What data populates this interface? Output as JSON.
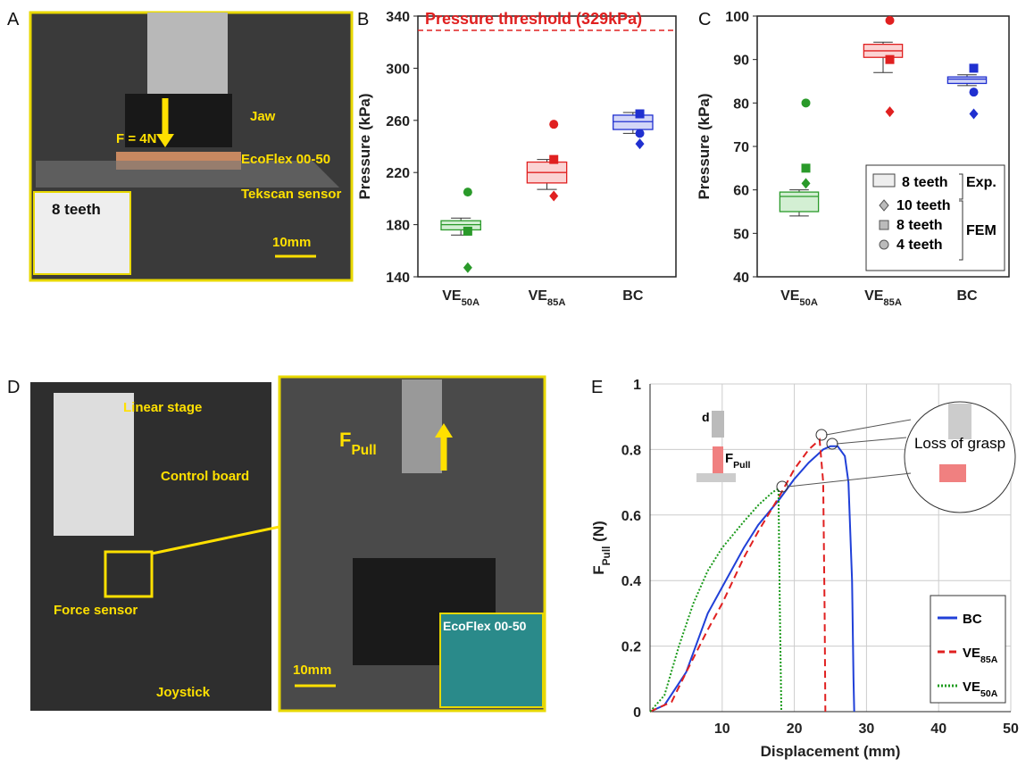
{
  "panels": [
    "A",
    "B",
    "C",
    "D",
    "E"
  ],
  "photo_a": {
    "force": "F = 4N",
    "jaw": "Jaw",
    "ecoflex": "EcoFlex 00-50",
    "sensor": "Tekscan sensor",
    "teeth": "8 teeth",
    "scale": "10mm"
  },
  "photo_d": {
    "stage": "Linear stage",
    "board": "Control board",
    "force_sensor": "Force sensor",
    "joystick": "Joystick",
    "pull": {
      "main": "F",
      "sub": "Pull"
    },
    "ecoflex": "EcoFlex 00-50",
    "scale": "10mm"
  },
  "chart_data": [
    {
      "type": "box",
      "ylabel": "Pressure (kPa)",
      "categories": [
        {
          "main": "VE",
          "sub": "50A"
        },
        {
          "main": "VE",
          "sub": "85A"
        },
        {
          "main": "BC"
        }
      ],
      "colors": [
        "#2a9a2a",
        "#e02020",
        "#2030d0"
      ],
      "fills": [
        "#d3efd3",
        "#fbd3d3",
        "#d3d6f7"
      ],
      "ylim": [
        140,
        340
      ],
      "yticks": [
        140,
        180,
        220,
        260,
        300,
        340
      ],
      "boxes": [
        {
          "whisker_low": 172,
          "q1": 176,
          "median": 180,
          "q3": 183,
          "whisker_high": 185
        },
        {
          "whisker_low": 207,
          "q1": 212,
          "median": 220,
          "q3": 228,
          "whisker_high": 230
        },
        {
          "whisker_low": 250,
          "q1": 253,
          "median": 259,
          "q3": 264,
          "whisker_high": 266
        }
      ],
      "fem": {
        "circle": [
          205,
          257,
          250
        ],
        "square": [
          175,
          230,
          265
        ],
        "diamond": [
          147,
          202,
          242
        ]
      },
      "threshold": {
        "value": 329,
        "label": "Pressure threshold (329kPa)"
      }
    },
    {
      "type": "box",
      "ylabel": "Pressure (kPa)",
      "categories": [
        {
          "main": "VE",
          "sub": "50A"
        },
        {
          "main": "VE",
          "sub": "85A"
        },
        {
          "main": "BC"
        }
      ],
      "colors": [
        "#2a9a2a",
        "#e02020",
        "#2030d0"
      ],
      "fills": [
        "#d3efd3",
        "#fbd3d3",
        "#d3d6f7"
      ],
      "ylim": [
        40,
        100
      ],
      "yticks": [
        40,
        50,
        60,
        70,
        80,
        90,
        100
      ],
      "boxes": [
        {
          "whisker_low": 54,
          "q1": 55,
          "median": 58.5,
          "q3": 59.5,
          "whisker_high": 60
        },
        {
          "whisker_low": 87,
          "q1": 90.5,
          "median": 92,
          "q3": 93.5,
          "whisker_high": 94
        },
        {
          "whisker_low": 84,
          "q1": 84.5,
          "median": 85.5,
          "q3": 86,
          "whisker_high": 86.5
        }
      ],
      "fem": {
        "circle": [
          80,
          99,
          82.5
        ],
        "square": [
          65,
          90,
          88
        ],
        "diamond": [
          61.5,
          78,
          77.5
        ]
      },
      "legend": {
        "exp_item": "8 teeth",
        "exp": "Exp.",
        "diamond": "10 teeth",
        "square": "8 teeth",
        "circle": "4 teeth",
        "fem": "FEM"
      }
    },
    {
      "type": "line",
      "xlabel": "Displacement (mm)",
      "ylabel": {
        "main": "F",
        "sub": "Pull",
        "tail": " (N)"
      },
      "xlim": [
        0,
        50
      ],
      "xticks": [
        10,
        20,
        30,
        40,
        50
      ],
      "ylim": [
        0,
        1
      ],
      "yticks": [
        0,
        0.2,
        0.4,
        0.6,
        0.8,
        1
      ],
      "grid": true,
      "legend": "lower right",
      "annotation": "Loss of grasp",
      "inset": {
        "d": "d",
        "force": {
          "main": "F",
          "sub": "Pull"
        }
      },
      "series": [
        {
          "name": "BC",
          "color": "#2040d8",
          "dash": "solid",
          "x": [
            0,
            2,
            5,
            8,
            10,
            13,
            15,
            18,
            20,
            22,
            24,
            25,
            26,
            27,
            27.5,
            28,
            28.2,
            28.3
          ],
          "values": [
            0,
            0.02,
            0.12,
            0.3,
            0.38,
            0.5,
            0.57,
            0.65,
            0.71,
            0.76,
            0.8,
            0.81,
            0.81,
            0.78,
            0.7,
            0.4,
            0.1,
            0
          ]
        },
        {
          "name": "VE",
          "name_sub": "85A",
          "color": "#e02020",
          "dash": "dashed",
          "x": [
            0,
            3,
            5,
            8,
            10,
            13,
            15,
            18,
            20,
            22,
            23.5,
            24,
            24.2,
            24.3
          ],
          "values": [
            0,
            0.03,
            0.12,
            0.25,
            0.33,
            0.47,
            0.55,
            0.66,
            0.74,
            0.8,
            0.83,
            0.7,
            0.3,
            0
          ]
        },
        {
          "name": "VE",
          "name_sub": "50A",
          "color": "#1a9a1a",
          "dash": "dotted",
          "x": [
            0,
            2,
            4,
            6,
            8,
            10,
            13,
            15,
            17,
            17.8,
            18,
            18.2
          ],
          "values": [
            0,
            0.05,
            0.2,
            0.33,
            0.43,
            0.5,
            0.58,
            0.63,
            0.67,
            0.68,
            0.3,
            0
          ]
        }
      ]
    }
  ]
}
